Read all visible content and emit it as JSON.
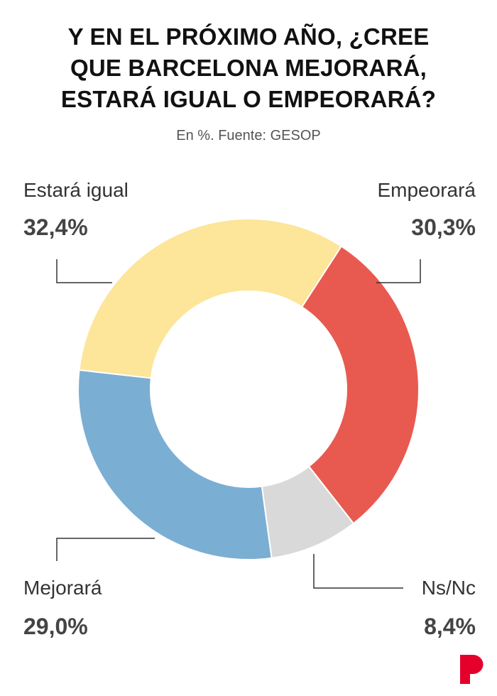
{
  "chart_data": {
    "type": "pie",
    "variant": "donut",
    "title_lines": [
      "Y EN EL PRÓXIMO AÑO, ¿CREE",
      "QUE  BARCELONA MEJORARÁ,",
      "ESTARÁ IGUAL O EMPEORARÁ?"
    ],
    "subtitle": "En %. Fuente: GESOP",
    "start_angle_deg": 33,
    "slices": [
      {
        "label": "Empeorará",
        "value": 30.3,
        "display": "30,3%",
        "color": "#e85a4f"
      },
      {
        "label": "Ns/Nc",
        "value": 8.4,
        "display": "8,4%",
        "color": "#d9d9d9"
      },
      {
        "label": "Mejorará",
        "value": 29.0,
        "display": "29,0%",
        "color": "#7baed3"
      },
      {
        "label": "Estará igual",
        "value": 32.4,
        "display": "32,4%",
        "color": "#fde599"
      }
    ]
  },
  "logo": {
    "text": "P",
    "color": "#e4002b"
  }
}
